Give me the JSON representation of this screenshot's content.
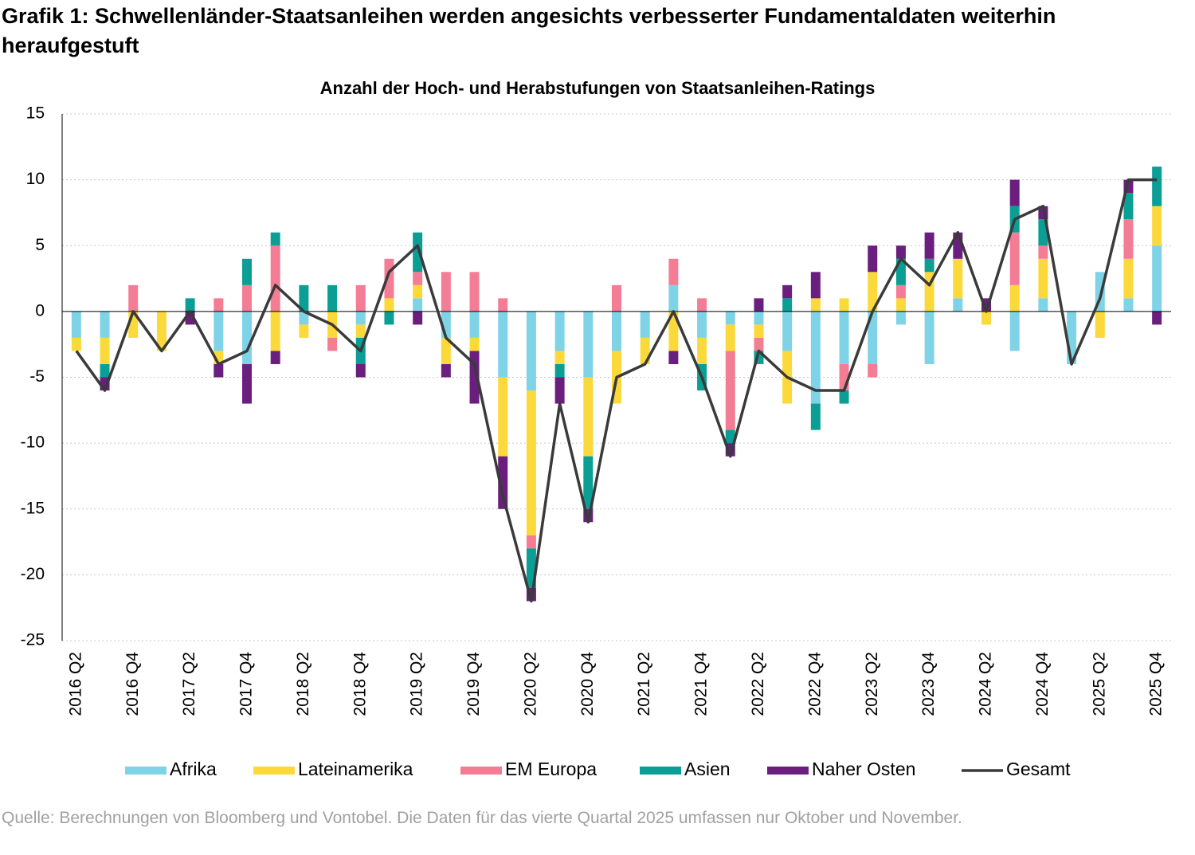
{
  "chart_data": {
    "type": "bar",
    "title": "Grafik 1: Schwellenländer-Staatsanleihen werden angesichts verbesserter Fundamentaldaten weiterhin heraufgestuft",
    "subtitle": "Anzahl der Hoch- und Herabstufungen von Staatsanleihen-Ratings",
    "source": "Quelle: Berechnungen von Bloomberg und Vontobel. Die Daten für das vierte Quartal 2025 umfassen nur Oktober und November.",
    "categories": [
      "2016 Q2",
      null,
      "2016 Q4",
      null,
      "2017 Q2",
      null,
      "2017 Q4",
      null,
      "2018 Q2",
      null,
      "2018 Q4",
      null,
      "2019 Q2",
      null,
      "2019 Q4",
      null,
      "2020 Q2",
      null,
      "2020 Q4",
      null,
      "2021 Q2",
      null,
      "2021 Q4",
      null,
      "2022 Q2",
      null,
      "2022 Q4",
      null,
      "2023 Q2",
      null,
      "2023 Q4",
      null,
      "2024 Q2",
      null,
      "2024 Q4",
      null,
      "2025 Q2",
      null,
      "2025 Q4"
    ],
    "series": [
      {
        "name": "Afrika",
        "color": "#7fd3e6",
        "values": [
          -2,
          -2,
          0,
          0,
          0,
          -3,
          -4,
          0,
          -1,
          0,
          -1,
          0,
          1,
          -2,
          -2,
          -5,
          -6,
          -3,
          -5,
          -3,
          -2,
          2,
          -2,
          -1,
          -1,
          -3,
          -7,
          -4,
          -4,
          -1,
          -4,
          1,
          0,
          -3,
          1,
          -4,
          3,
          1,
          5
        ]
      },
      {
        "name": "Lateinamerika",
        "color": "#fcd93a",
        "values": [
          -1,
          -2,
          -2,
          -3,
          0,
          -1,
          0,
          -3,
          -1,
          -2,
          -1,
          1,
          1,
          -2,
          -1,
          -6,
          -11,
          -1,
          -6,
          -4,
          -2,
          -3,
          -2,
          -2,
          -1,
          -4,
          1,
          1,
          3,
          1,
          3,
          3,
          -1,
          2,
          3,
          0,
          -2,
          3,
          3
        ]
      },
      {
        "name": "EM Europa",
        "color": "#f47d96",
        "values": [
          0,
          0,
          2,
          0,
          0,
          1,
          2,
          5,
          0,
          -1,
          2,
          3,
          1,
          3,
          3,
          1,
          -1,
          0,
          0,
          2,
          0,
          2,
          1,
          -6,
          -1,
          0,
          0,
          -2,
          -1,
          1,
          0,
          0,
          0,
          4,
          1,
          0,
          0,
          3,
          0
        ]
      },
      {
        "name": "Asien",
        "color": "#0a9e94",
        "values": [
          0,
          -1,
          0,
          0,
          1,
          0,
          2,
          1,
          2,
          2,
          -2,
          -1,
          3,
          0,
          0,
          0,
          -3,
          -1,
          -4,
          0,
          0,
          0,
          -2,
          -1,
          -1,
          1,
          -2,
          -1,
          0,
          2,
          1,
          0,
          0,
          2,
          2,
          0,
          0,
          2,
          3
        ]
      },
      {
        "name": "Naher Osten",
        "color": "#6a1f7f",
        "values": [
          0,
          -1,
          0,
          0,
          -1,
          -1,
          -3,
          -1,
          0,
          0,
          -1,
          0,
          -1,
          -1,
          -4,
          -4,
          -1,
          -2,
          -1,
          0,
          0,
          -1,
          0,
          -1,
          1,
          1,
          2,
          0,
          2,
          1,
          2,
          2,
          1,
          2,
          1,
          0,
          0,
          1,
          -1
        ]
      },
      {
        "name": "Gesamt",
        "type": "line",
        "color": "#3a3a3a",
        "values": [
          -3,
          -6,
          0,
          -3,
          0,
          -4,
          -3,
          2,
          0,
          -1,
          -3,
          3,
          5,
          -2,
          -4,
          -14,
          -22,
          -7,
          -16,
          -5,
          -4,
          0,
          -5,
          -11,
          -3,
          -5,
          -6,
          -6,
          0,
          4,
          2,
          6,
          0,
          7,
          8,
          -4,
          1,
          10,
          10
        ]
      }
    ],
    "ylim": [
      -25,
      15
    ],
    "yticks": [
      -25,
      -20,
      -15,
      -10,
      -5,
      0,
      5,
      10,
      15
    ],
    "grid": true,
    "legend": "bottom"
  }
}
